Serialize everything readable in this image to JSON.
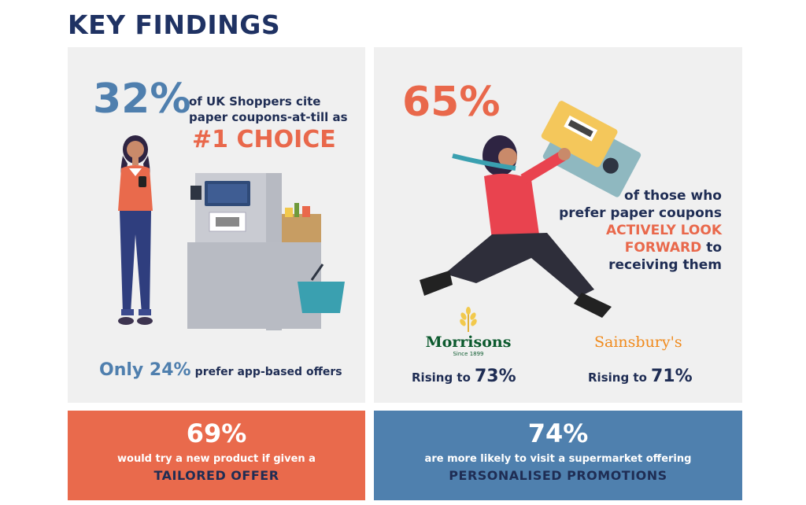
{
  "title": "KEY FINDINGS",
  "left": {
    "stat": "32%",
    "line1": "of UK Shoppers cite",
    "line2": "paper coupons-at-till as",
    "highlight": "#1 CHOICE",
    "footer_prefix": "Only 24%",
    "footer_rest": "prefer app-based offers"
  },
  "right": {
    "stat": "65%",
    "line1": "of those who",
    "line2": "prefer paper coupons",
    "highlight1": "ACTIVELY LOOK",
    "highlight2": "FORWARD",
    "line3": "to",
    "line4": "receiving them",
    "morrisons_logo": "Morrisons",
    "morrisons_since": "Since 1899",
    "sainsburys_logo": "Sainsbury's",
    "morrisons_prefix": "Rising to",
    "morrisons_value": "73%",
    "sainsburys_prefix": "Rising to",
    "sainsburys_value": "71%"
  },
  "bottom_left": {
    "stat": "69%",
    "line1": "would try a new product if given a",
    "line2": "TAILORED OFFER"
  },
  "bottom_right": {
    "stat": "74%",
    "line1": "are more likely to visit a supermarket offering",
    "line2": "PERSONALISED PROMOTIONS"
  },
  "colors": {
    "navy": "#1f2d54",
    "orange": "#e9684b",
    "blue": "#4f7fae",
    "panel": "#f0f0f0"
  }
}
